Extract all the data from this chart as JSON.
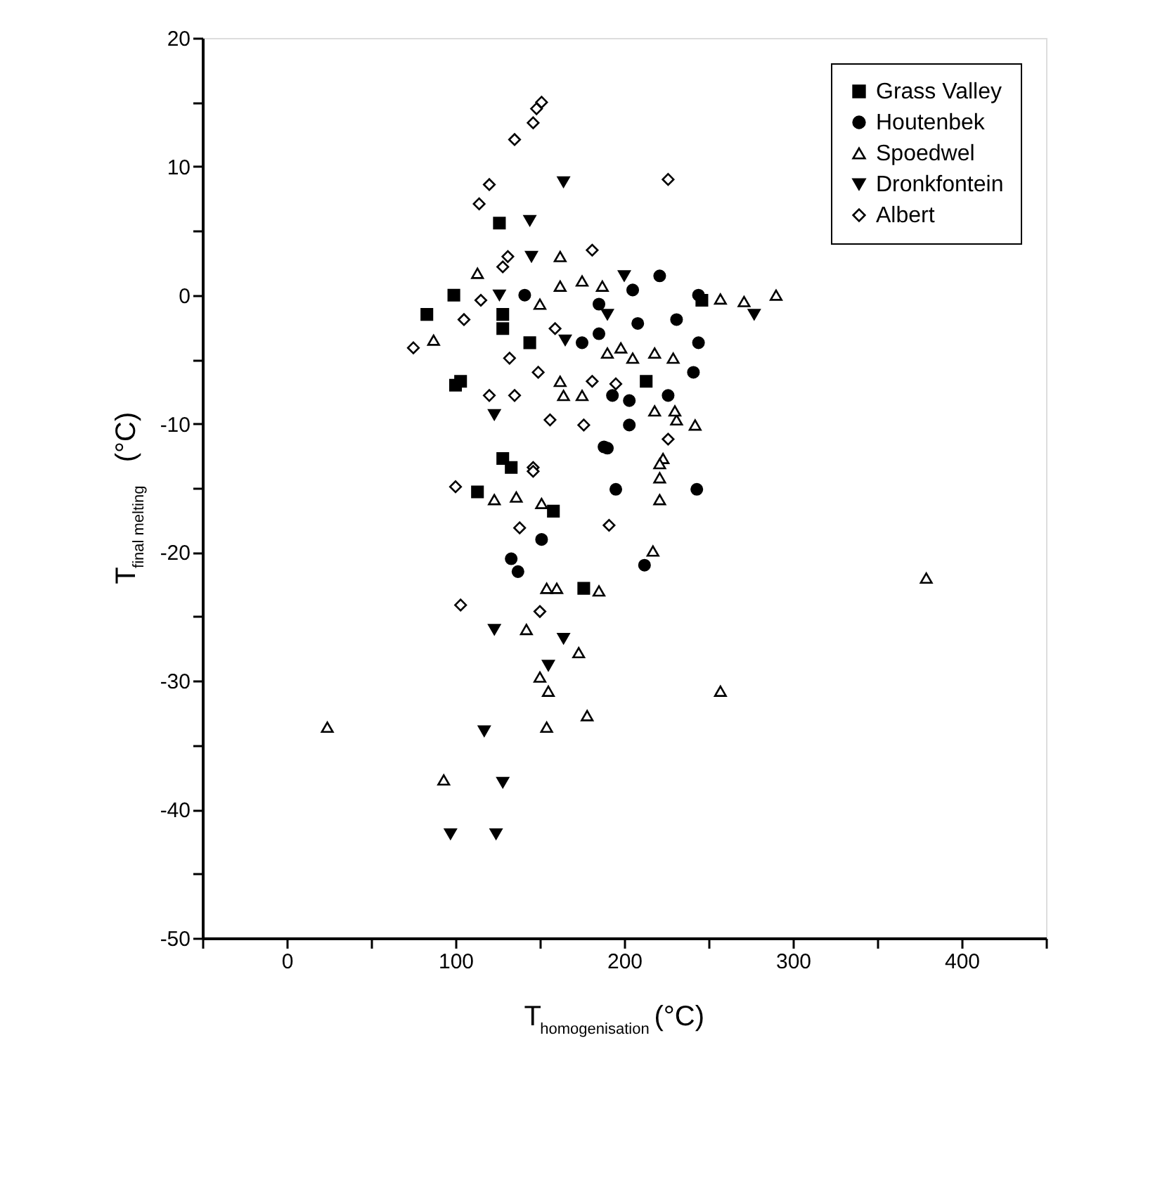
{
  "chart_data": {
    "type": "scatter",
    "xlabel": "T$_{homogenisation}$ (°C)",
    "ylabel": "T$_{final melting}$ (°C)",
    "xlim": [
      -50,
      450
    ],
    "ylim": [
      -50,
      20
    ],
    "xticks": [
      {
        "value": -50,
        "label": null
      },
      0,
      {
        "value": 50,
        "label": null
      },
      100,
      {
        "value": 150,
        "label": null
      },
      200,
      {
        "value": 250,
        "label": null
      },
      300,
      {
        "value": 350,
        "label": null
      },
      400,
      {
        "value": 450,
        "label": null
      }
    ],
    "yticks": [
      -50,
      {
        "value": -45,
        "label": null
      },
      -40,
      {
        "value": -35,
        "label": null
      },
      -30,
      {
        "value": -25,
        "label": null
      },
      -20,
      {
        "value": -15,
        "label": null
      },
      -10,
      {
        "value": -5,
        "label": null
      },
      0,
      {
        "value": 5,
        "label": null
      },
      10,
      {
        "value": 15,
        "label": null
      },
      20
    ],
    "grid": false,
    "legend": "top right",
    "series": [
      {
        "name": "Grass Valley",
        "color": "#000000",
        "marker": "square",
        "x": [
          83,
          99,
          128,
          128,
          144,
          103,
          100,
          126,
          213,
          128,
          133,
          113,
          158,
          176,
          246
        ],
        "values": [
          -1.5,
          0,
          -1.5,
          -2.6,
          -3.7,
          -6.7,
          -7,
          5.6,
          -6.7,
          -12.7,
          -13.4,
          -15.3,
          -16.8,
          -22.8,
          -0.4
        ]
      },
      {
        "name": "Houtenbek",
        "color": "#000000",
        "marker": "circle",
        "x": [
          141,
          185,
          205,
          221,
          244,
          231,
          244,
          241,
          175,
          185,
          208,
          193,
          226,
          203,
          203,
          190,
          188,
          151,
          195,
          243,
          212,
          133,
          137
        ],
        "values": [
          0,
          -0.7,
          0.4,
          1.5,
          0,
          -1.9,
          -3.7,
          -6.0,
          -3.7,
          -3.0,
          -2.2,
          -7.8,
          -7.8,
          -8.2,
          -10.1,
          -11.9,
          -11.8,
          -19,
          -15.1,
          -15.1,
          -21,
          -20.5,
          -21.5
        ]
      },
      {
        "name": "Spoedwel",
        "color": "#000000",
        "marker": "triangle",
        "x": [
          113,
          87,
          162,
          150,
          175,
          162,
          187,
          198,
          190,
          205,
          218,
          229,
          162,
          175,
          164,
          218,
          231,
          242,
          223,
          257,
          271,
          290,
          230,
          123,
          136,
          151,
          221,
          221,
          221,
          217,
          154,
          160,
          185,
          142,
          173,
          150,
          155,
          154,
          178,
          24,
          93,
          379,
          257
        ],
        "values": [
          1.7,
          -3.5,
          3.0,
          -0.7,
          1.1,
          0.7,
          0.7,
          -4.1,
          -4.5,
          -4.9,
          -4.5,
          -4.9,
          -6.7,
          -7.8,
          -7.8,
          -9.0,
          -9.7,
          -10.1,
          -12.7,
          -0.3,
          -0.5,
          0,
          -9,
          -15.9,
          -15.7,
          -16.2,
          -13.1,
          -14.2,
          -15.9,
          -19.9,
          -22.8,
          -22.8,
          -23,
          -26,
          -27.8,
          -29.7,
          -30.8,
          -33.6,
          -32.7,
          -33.6,
          -37.7,
          -22,
          -30.8
        ]
      },
      {
        "name": "Dronkfontein",
        "color": "#000000",
        "marker": "triangle-down",
        "x": [
          164,
          144,
          145,
          200,
          126,
          165,
          123,
          190,
          277,
          123,
          164,
          155,
          117,
          128,
          97,
          124
        ],
        "values": [
          8.8,
          5.8,
          3.0,
          1.5,
          0,
          -3.5,
          -9.3,
          -1.5,
          -1.5,
          -26,
          -26.7,
          -28.8,
          -33.9,
          -37.9,
          -41.9,
          -41.9
        ]
      },
      {
        "name": "Albert",
        "color": "#000000",
        "marker": "diamond",
        "x": [
          135,
          146,
          148,
          151,
          120,
          114,
          226,
          181,
          131,
          128,
          115,
          105,
          75,
          132,
          159,
          149,
          120,
          135,
          156,
          176,
          181,
          195,
          226,
          146,
          100,
          146,
          138,
          191,
          103,
          150
        ],
        "values": [
          12.1,
          13.4,
          14.5,
          15,
          8.6,
          7.1,
          9.0,
          3.5,
          3.0,
          2.2,
          -0.4,
          -1.9,
          -4.1,
          -4.9,
          -2.6,
          -6.0,
          -7.8,
          -7.8,
          -9.7,
          -10.1,
          -6.7,
          -6.9,
          -11.2,
          -13.4,
          -14.9,
          -13.7,
          -18.1,
          -17.9,
          -24.1,
          -24.6
        ]
      }
    ]
  }
}
